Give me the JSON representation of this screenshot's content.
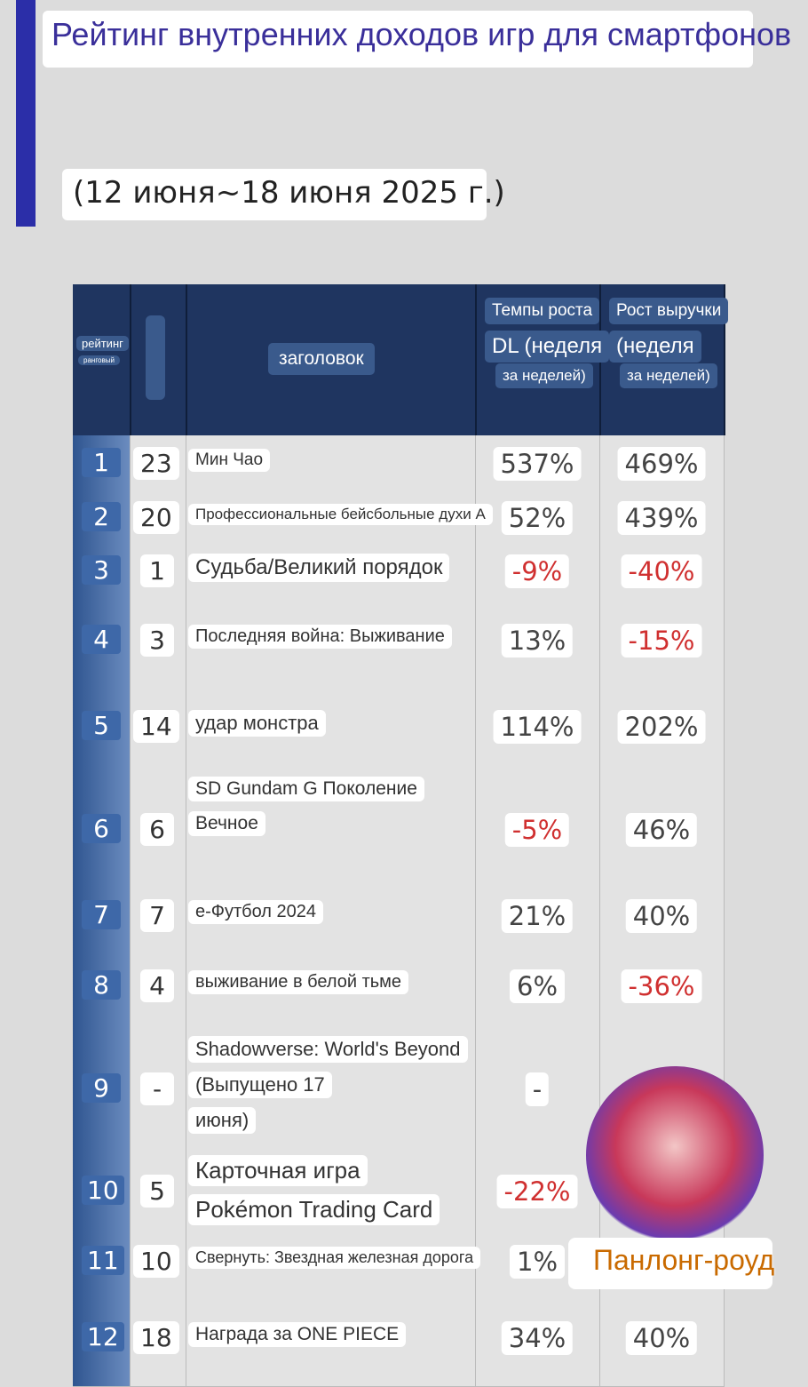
{
  "header": {
    "title": "Рейтинг внутренних доходов игр для смартфонов",
    "subtitle": "(12 июня~18 июня 2025 г.)"
  },
  "table": {
    "columns": {
      "rank": [
        "рейтинг",
        "ранговый"
      ],
      "title": "заголовок",
      "dl": [
        "Темпы роста",
        "DL (неделя",
        "за неделей)"
      ],
      "revenue": [
        "Рост выручки",
        "(неделя",
        "за неделей)"
      ]
    },
    "rows": [
      {
        "rank": "1",
        "prev": "23",
        "title": [
          "Мин Чао"
        ],
        "dl": "537%",
        "rev": "469%"
      },
      {
        "rank": "2",
        "prev": "20",
        "title": [
          "Профессиональные бейсбольные духи A"
        ],
        "dl": "52%",
        "rev": "439%"
      },
      {
        "rank": "3",
        "prev": "1",
        "title": [
          "Судьба/Великий порядок"
        ],
        "dl": "-9%",
        "rev": "-40%"
      },
      {
        "rank": "4",
        "prev": "3",
        "title": [
          "Последняя война: Выживание"
        ],
        "dl": "13%",
        "rev": "-15%"
      },
      {
        "rank": "5",
        "prev": "14",
        "title": [
          "удар монстра"
        ],
        "dl": "114%",
        "rev": "202%"
      },
      {
        "rank": "6",
        "prev": "6",
        "title": [
          "SD Gundam G Поколение",
          "Вечное"
        ],
        "dl": "-5%",
        "rev": "46%"
      },
      {
        "rank": "7",
        "prev": "7",
        "title": [
          "e-Футбол 2024"
        ],
        "dl": "21%",
        "rev": "40%"
      },
      {
        "rank": "8",
        "prev": "4",
        "title": [
          "выживание в белой тьме"
        ],
        "dl": "6%",
        "rev": "-36%"
      },
      {
        "rank": "9",
        "prev": "-",
        "title": [
          "Shadowverse: World's Beyond",
          "(Выпущено 17",
          "июня)"
        ],
        "dl": "-"
      },
      {
        "rank": "10",
        "prev": "5",
        "title": [
          "Карточная игра",
          "Pokémon Trading Card"
        ],
        "dl": "-22%"
      },
      {
        "rank": "11",
        "prev": "10",
        "title": [
          "Свернуть: Звездная железная дорога"
        ],
        "dl": "1%"
      },
      {
        "rank": "12",
        "prev": "18",
        "title": [
          "Награда за ONE PIECE"
        ],
        "dl": "34%",
        "rev": "40%"
      }
    ]
  },
  "watermark": "Панлонг-роуд"
}
